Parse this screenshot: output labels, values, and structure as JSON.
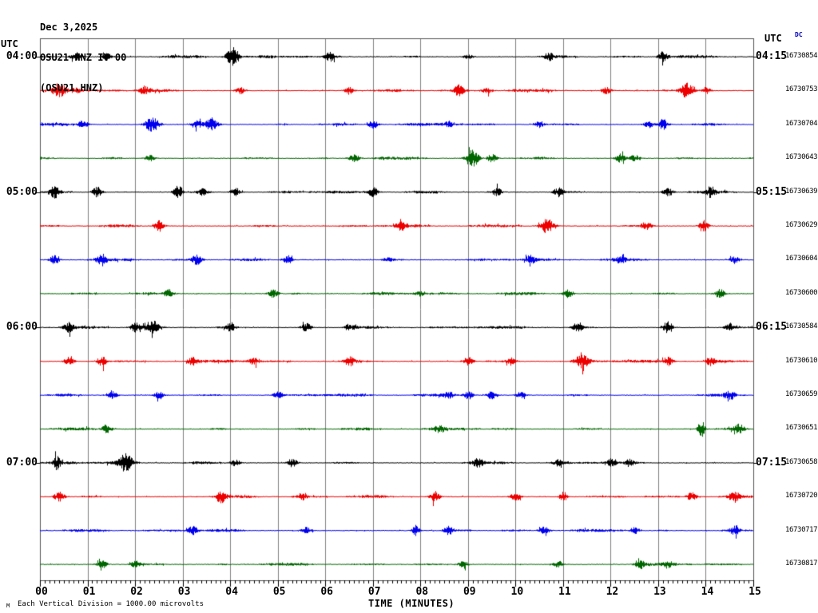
{
  "header": {
    "date": "Dec 3,2025",
    "station_line": "OSU21 HNZ IV 00",
    "channel_line": "(OSU21.HNZ)"
  },
  "left_axis": {
    "utc_label": "UTC"
  },
  "right_axis": {
    "utc_label": "UTC",
    "dc_label": "DC"
  },
  "footer": {
    "scale_marker": "M",
    "scale_note": "Each Vertical Division = 1000.00 microvolts"
  },
  "colors": {
    "black_trace": "#000000",
    "red_trace": "#ee0000",
    "blue_trace": "#0000ee",
    "green_trace": "#006600",
    "grid": "#808080",
    "border": "#555555",
    "tick": "#000000",
    "dc_text": "#0000bb"
  },
  "chart_data": {
    "type": "line",
    "title": "OSU21 HNZ IV 00 heliplot",
    "xlabel": "TIME (MINUTES)",
    "x_range_minutes": [
      0,
      15
    ],
    "x_ticks": [
      "00",
      "01",
      "02",
      "03",
      "04",
      "05",
      "06",
      "07",
      "08",
      "09",
      "10",
      "11",
      "12",
      "13",
      "14",
      "15"
    ],
    "minor_ticks_per_minute": 10,
    "grid": "vertical-minute-lines",
    "rows": [
      {
        "left_label": "04:00",
        "right_label": "04:15",
        "right_value": "16730854",
        "color": "#000000",
        "bursts": [
          [
            0.75,
            4
          ],
          [
            1.4,
            3
          ],
          [
            4.05,
            9,
            0.09
          ],
          [
            6.1,
            4
          ],
          [
            9.0,
            2
          ],
          [
            10.7,
            3
          ],
          [
            13.1,
            5
          ]
        ]
      },
      {
        "left_label": "",
        "right_label": "",
        "right_value": "16730753",
        "color": "#ee0000",
        "bursts": [
          [
            0.4,
            7,
            0.1
          ],
          [
            0.75,
            3
          ],
          [
            2.2,
            4
          ],
          [
            4.2,
            3
          ],
          [
            6.5,
            3
          ],
          [
            8.8,
            5
          ],
          [
            9.4,
            3
          ],
          [
            11.9,
            3
          ],
          [
            13.6,
            7,
            0.09
          ],
          [
            14.0,
            3
          ]
        ]
      },
      {
        "left_label": "",
        "right_label": "",
        "right_value": "16730704",
        "color": "#0000ee",
        "bursts": [
          [
            0.9,
            4
          ],
          [
            2.35,
            7,
            0.1
          ],
          [
            3.3,
            3
          ],
          [
            3.6,
            6,
            0.09
          ],
          [
            7.0,
            4
          ],
          [
            8.6,
            3
          ],
          [
            10.5,
            3
          ],
          [
            12.8,
            3
          ],
          [
            13.1,
            5
          ]
        ]
      },
      {
        "left_label": "",
        "right_label": "",
        "right_value": "16730643",
        "color": "#006600",
        "bursts": [
          [
            2.3,
            3
          ],
          [
            6.6,
            4
          ],
          [
            9.1,
            8,
            0.08
          ],
          [
            9.5,
            4
          ],
          [
            12.2,
            4
          ],
          [
            12.5,
            3
          ]
        ]
      },
      {
        "left_label": "05:00",
        "right_label": "05:15",
        "right_value": "16730639",
        "color": "#000000",
        "bursts": [
          [
            0.3,
            5
          ],
          [
            1.2,
            5
          ],
          [
            2.9,
            6
          ],
          [
            3.4,
            3
          ],
          [
            4.1,
            4
          ],
          [
            7.0,
            5
          ],
          [
            9.6,
            4
          ],
          [
            10.9,
            4
          ],
          [
            13.2,
            4
          ],
          [
            14.1,
            5
          ]
        ]
      },
      {
        "left_label": "",
        "right_label": "",
        "right_value": "16730629",
        "color": "#ee0000",
        "bursts": [
          [
            2.5,
            5
          ],
          [
            7.6,
            4
          ],
          [
            10.65,
            7,
            0.09
          ],
          [
            12.75,
            4
          ],
          [
            13.95,
            5
          ]
        ]
      },
      {
        "left_label": "",
        "right_label": "",
        "right_value": "16730604",
        "color": "#0000ee",
        "bursts": [
          [
            0.3,
            4
          ],
          [
            1.3,
            5
          ],
          [
            3.3,
            5
          ],
          [
            5.2,
            4
          ],
          [
            7.3,
            2
          ],
          [
            10.3,
            4
          ],
          [
            12.2,
            3
          ],
          [
            14.6,
            3
          ]
        ]
      },
      {
        "left_label": "",
        "right_label": "",
        "right_value": "16730600",
        "color": "#006600",
        "bursts": [
          [
            2.7,
            4
          ],
          [
            4.9,
            4
          ],
          [
            8.0,
            2
          ],
          [
            11.1,
            4
          ],
          [
            14.3,
            4
          ]
        ]
      },
      {
        "left_label": "06:00",
        "right_label": "06:15",
        "right_value": "16730584",
        "color": "#000000",
        "bursts": [
          [
            0.6,
            4
          ],
          [
            2.0,
            4
          ],
          [
            2.35,
            7,
            0.1
          ],
          [
            4.0,
            4
          ],
          [
            5.6,
            4
          ],
          [
            6.5,
            3
          ],
          [
            11.3,
            5
          ],
          [
            13.2,
            6
          ],
          [
            14.5,
            3
          ]
        ]
      },
      {
        "left_label": "",
        "right_label": "",
        "right_value": "16730610",
        "color": "#ee0000",
        "bursts": [
          [
            0.6,
            4
          ],
          [
            1.3,
            5
          ],
          [
            3.2,
            4
          ],
          [
            4.5,
            3
          ],
          [
            6.5,
            4
          ],
          [
            9.0,
            4
          ],
          [
            9.9,
            3
          ],
          [
            11.4,
            6,
            0.1
          ],
          [
            13.2,
            4
          ],
          [
            14.1,
            4
          ]
        ]
      },
      {
        "left_label": "",
        "right_label": "",
        "right_value": "16730659",
        "color": "#0000ee",
        "bursts": [
          [
            1.5,
            4
          ],
          [
            2.5,
            3
          ],
          [
            5.0,
            3
          ],
          [
            8.6,
            3
          ],
          [
            9.0,
            4
          ],
          [
            9.5,
            4
          ],
          [
            10.1,
            3
          ],
          [
            14.5,
            4
          ]
        ]
      },
      {
        "left_label": "",
        "right_label": "",
        "right_value": "16730651",
        "color": "#006600",
        "bursts": [
          [
            1.4,
            4
          ],
          [
            8.4,
            3
          ],
          [
            13.9,
            8,
            0.05
          ],
          [
            14.7,
            4
          ]
        ]
      },
      {
        "left_label": "07:00",
        "right_label": "07:15",
        "right_value": "16730658",
        "color": "#000000",
        "bursts": [
          [
            0.35,
            6,
            0.05
          ],
          [
            1.8,
            8,
            0.1
          ],
          [
            4.1,
            3
          ],
          [
            5.3,
            4
          ],
          [
            9.2,
            4
          ],
          [
            10.9,
            3
          ],
          [
            12.0,
            4
          ],
          [
            12.4,
            3
          ]
        ]
      },
      {
        "left_label": "",
        "right_label": "",
        "right_value": "16730720",
        "color": "#ee0000",
        "bursts": [
          [
            0.4,
            5
          ],
          [
            3.8,
            5
          ],
          [
            5.5,
            3
          ],
          [
            8.3,
            5
          ],
          [
            10.0,
            4
          ],
          [
            11.0,
            5,
            0.05
          ],
          [
            13.7,
            4
          ],
          [
            14.6,
            5
          ]
        ]
      },
      {
        "left_label": "",
        "right_label": "",
        "right_value": "16730717",
        "color": "#0000ee",
        "bursts": [
          [
            3.2,
            4
          ],
          [
            5.6,
            3
          ],
          [
            7.9,
            5,
            0.05
          ],
          [
            8.6,
            4
          ],
          [
            10.6,
            4
          ],
          [
            12.5,
            3
          ],
          [
            14.6,
            4
          ]
        ]
      },
      {
        "left_label": "",
        "right_label": "",
        "right_value": "16730817",
        "color": "#006600",
        "bursts": [
          [
            1.3,
            4
          ],
          [
            2.0,
            3
          ],
          [
            8.9,
            3
          ],
          [
            10.9,
            3
          ],
          [
            12.6,
            5
          ],
          [
            13.2,
            3
          ]
        ]
      }
    ]
  }
}
